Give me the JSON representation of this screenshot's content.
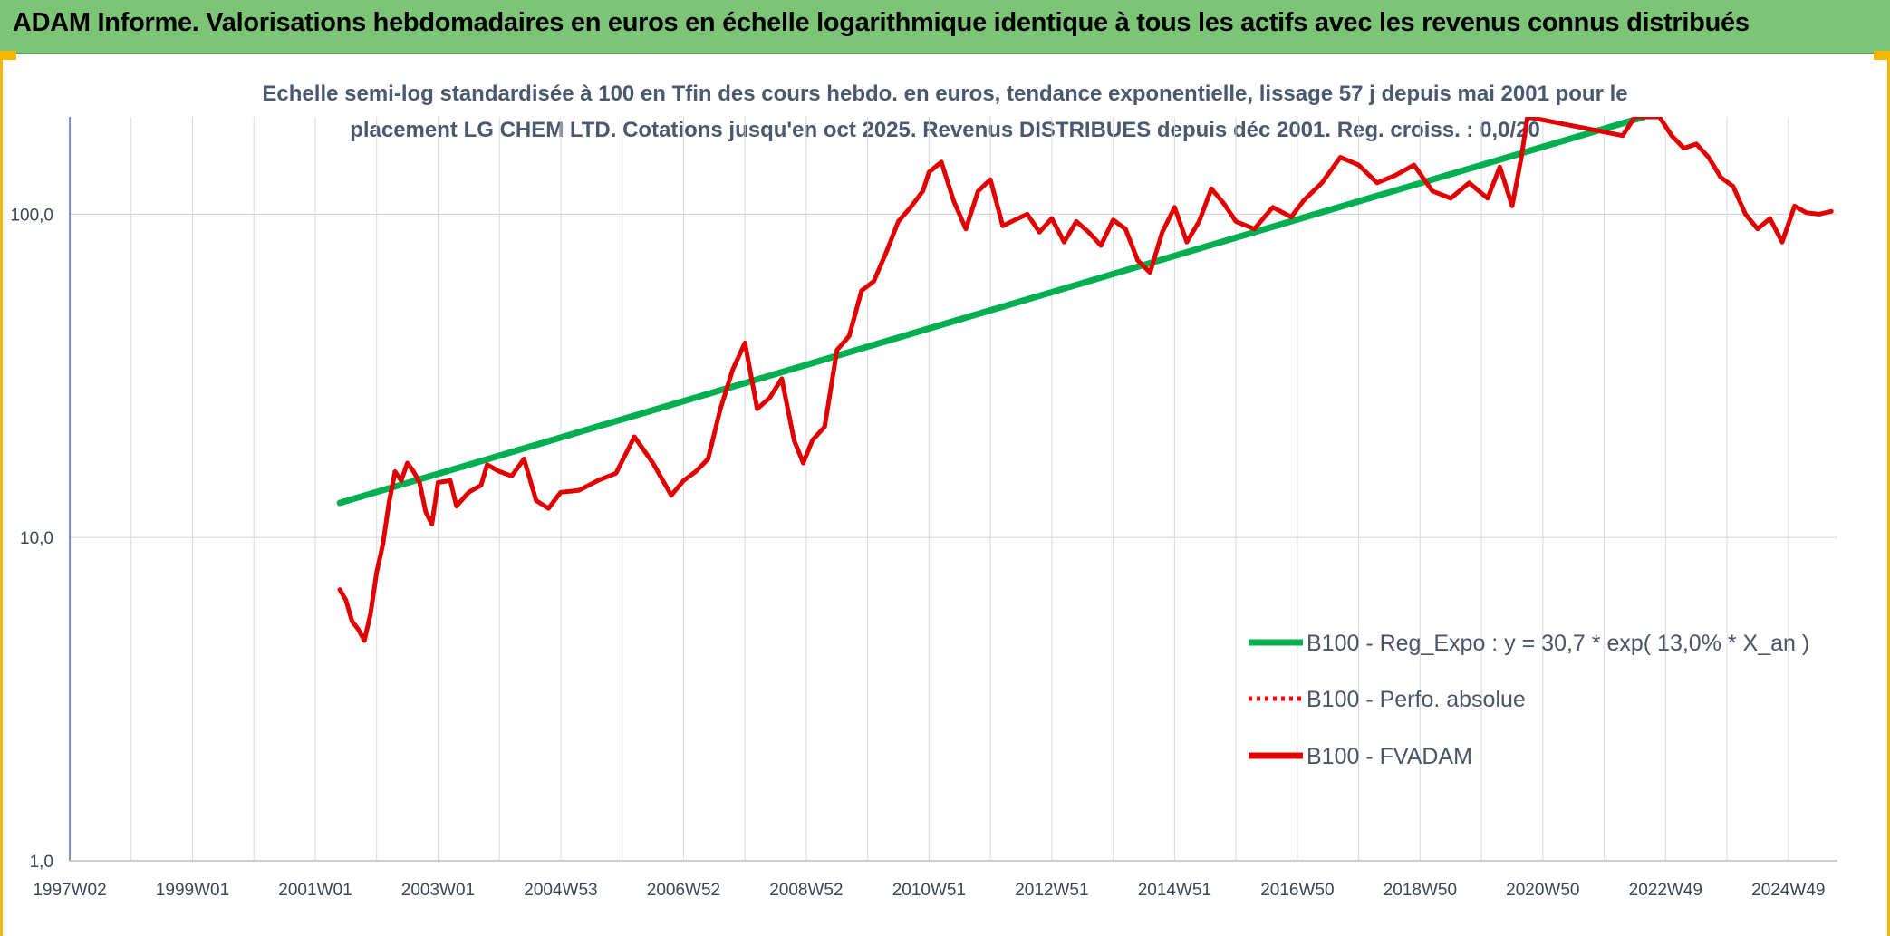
{
  "page": {
    "title": "ADAM Informe. Valorisations hebdomadaires en euros en échelle logarithmique identique à tous les actifs avec les revenus connus distribués"
  },
  "chart_data": {
    "type": "line",
    "subtitle_lines": [
      "Echelle semi-log standardisée à 100 en Tfin des cours hebdo. en euros, tendance exponentielle, lissage 57 j depuis mai 2001 pour le",
      "placement LG CHEM LTD. Cotations jusqu'en oct 2025. Revenus DISTRIBUES depuis déc 2001. Reg. croiss. : 0,0/20"
    ],
    "y_scale": "log",
    "ylim": [
      1,
      200
    ],
    "xlim": [
      1997.0,
      2025.8
    ],
    "y_ticks": [
      {
        "value": 1,
        "label": "1,0"
      },
      {
        "value": 10,
        "label": "10,0"
      },
      {
        "value": 100,
        "label": "100,0"
      }
    ],
    "x_ticks": [
      {
        "value": 1997.0,
        "label": "1997W02"
      },
      {
        "value": 1999.0,
        "label": "1999W01"
      },
      {
        "value": 2001.0,
        "label": "2001W01"
      },
      {
        "value": 2003.0,
        "label": "2003W01"
      },
      {
        "value": 2005.0,
        "label": "2004W53"
      },
      {
        "value": 2007.0,
        "label": "2006W52"
      },
      {
        "value": 2009.0,
        "label": "2008W52"
      },
      {
        "value": 2011.0,
        "label": "2010W51"
      },
      {
        "value": 2013.0,
        "label": "2012W51"
      },
      {
        "value": 2015.0,
        "label": "2014W51"
      },
      {
        "value": 2017.0,
        "label": "2016W50"
      },
      {
        "value": 2019.0,
        "label": "2018W50"
      },
      {
        "value": 2021.0,
        "label": "2020W50"
      },
      {
        "value": 2023.0,
        "label": "2022W49"
      },
      {
        "value": 2025.0,
        "label": "2024W49"
      }
    ],
    "grid": true,
    "legend_position": "right",
    "series": [
      {
        "name": "B100 - Reg_Expo : y = 30,7 * exp( 13,0% *  X_an )",
        "color": "#00b050",
        "style": "solid",
        "x": [
          2001.4,
          2022.65
        ],
        "y": [
          12.8,
          200
        ]
      },
      {
        "name": "B100 - Perfo. absolue",
        "color": "#ff0000",
        "style": "dotted",
        "x": [],
        "y": []
      },
      {
        "name": "B100 - FVADAM",
        "color": "#e00000",
        "style": "solid",
        "x": [
          2001.4,
          2001.5,
          2001.6,
          2001.7,
          2001.8,
          2001.9,
          2002.0,
          2002.1,
          2002.2,
          2002.3,
          2002.4,
          2002.5,
          2002.6,
          2002.7,
          2002.8,
          2002.9,
          2003.0,
          2003.2,
          2003.3,
          2003.5,
          2003.7,
          2003.8,
          2004.0,
          2004.2,
          2004.4,
          2004.6,
          2004.8,
          2005.0,
          2005.3,
          2005.6,
          2005.9,
          2006.2,
          2006.5,
          2006.8,
          2007.0,
          2007.2,
          2007.4,
          2007.6,
          2007.8,
          2008.0,
          2008.2,
          2008.4,
          2008.6,
          2008.8,
          2008.95,
          2009.1,
          2009.3,
          2009.5,
          2009.7,
          2009.9,
          2010.1,
          2010.3,
          2010.5,
          2010.7,
          2010.9,
          2011.0,
          2011.2,
          2011.4,
          2011.6,
          2011.8,
          2012.0,
          2012.2,
          2012.4,
          2012.6,
          2012.8,
          2013.0,
          2013.2,
          2013.4,
          2013.6,
          2013.8,
          2014.0,
          2014.2,
          2014.4,
          2014.6,
          2014.8,
          2015.0,
          2015.2,
          2015.4,
          2015.6,
          2015.8,
          2016.0,
          2016.3,
          2016.6,
          2016.9,
          2017.1,
          2017.4,
          2017.7,
          2018.0,
          2018.3,
          2018.6,
          2018.9,
          2019.2,
          2019.5,
          2019.8,
          2020.1,
          2020.3,
          2020.5,
          2020.65,
          2020.75,
          2022.3,
          2022.5,
          2022.7,
          2022.9,
          2023.1,
          2023.3,
          2023.5,
          2023.7,
          2023.9,
          2024.1,
          2024.3,
          2024.5,
          2024.7,
          2024.9,
          2025.1,
          2025.3,
          2025.5,
          2025.7
        ],
        "y": [
          6.9,
          6.4,
          5.5,
          5.2,
          4.8,
          5.8,
          7.8,
          9.5,
          12.8,
          16.0,
          15.0,
          17.0,
          16.0,
          14.8,
          12.0,
          11.0,
          14.8,
          15.0,
          12.5,
          13.8,
          14.5,
          16.8,
          16.0,
          15.5,
          17.5,
          13.0,
          12.3,
          13.8,
          14.0,
          15.0,
          15.8,
          20.5,
          17.0,
          13.5,
          15.0,
          16.0,
          17.5,
          25.0,
          33.0,
          40.0,
          25.0,
          27.0,
          31.0,
          20.0,
          17.0,
          20.0,
          22.0,
          38.0,
          42.0,
          58.0,
          62.0,
          76.0,
          95.0,
          105.0,
          118.0,
          135.0,
          145.0,
          110.0,
          90.0,
          118.0,
          128.0,
          92.0,
          96.0,
          100.0,
          88.0,
          97.0,
          82.0,
          95.0,
          88.0,
          80.0,
          96.0,
          90.0,
          72.0,
          66.0,
          88.0,
          105.0,
          82.0,
          95.0,
          120.0,
          108.0,
          95.0,
          90.0,
          105.0,
          98.0,
          110.0,
          125.0,
          150.0,
          142.0,
          125.0,
          132.0,
          142.0,
          118.0,
          112.0,
          125.0,
          112.0,
          140.0,
          106.0,
          150.0,
          200.0,
          175.0,
          200.0,
          200.0,
          200.0,
          175.0,
          160.0,
          165.0,
          150.0,
          130.0,
          122.0,
          100.0,
          90.0,
          97.0,
          82.0,
          106.0,
          101.0,
          100.0,
          102.0
        ]
      }
    ]
  }
}
